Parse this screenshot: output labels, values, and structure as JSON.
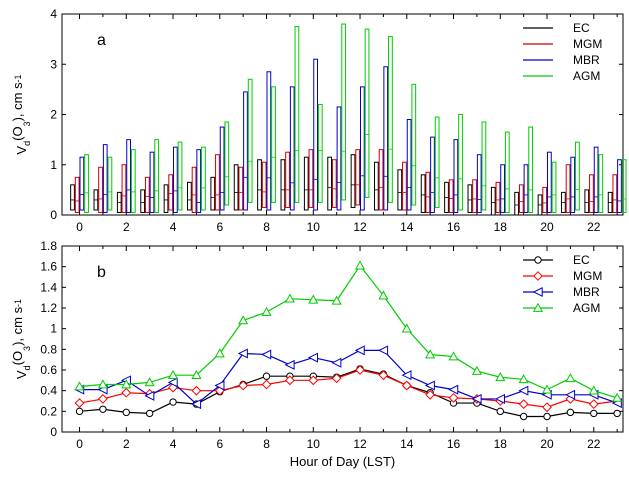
{
  "chart_data": [
    {
      "panel": "a",
      "type": "bar",
      "title": "",
      "ylabel_parts": [
        "V",
        "d",
        "(O",
        "3",
        "), cm s",
        "-1"
      ],
      "xlabel": "",
      "ylim": [
        0,
        4
      ],
      "yticks": [
        "0",
        "1",
        "2",
        "3",
        "4"
      ],
      "xticks": [
        "0",
        "2",
        "4",
        "6",
        "8",
        "10",
        "12",
        "14",
        "16",
        "18",
        "20",
        "22"
      ],
      "legend_position": "top-right",
      "series": [
        {
          "name": "EC",
          "color": "#000000",
          "low": [
            0.1,
            0.1,
            0.05,
            0.05,
            0.05,
            0.1,
            0.1,
            0.1,
            0.1,
            0.1,
            0.1,
            0.1,
            0.15,
            0.1,
            0.1,
            0.05,
            0.05,
            0.05,
            0.0,
            0.0,
            0.0,
            0.05,
            0.05,
            0.05
          ],
          "high": [
            0.6,
            0.5,
            0.45,
            0.5,
            0.6,
            0.65,
            0.75,
            1.0,
            1.1,
            1.1,
            1.15,
            1.15,
            1.2,
            1.05,
            0.9,
            0.8,
            0.65,
            0.6,
            0.55,
            0.45,
            0.4,
            0.45,
            0.5,
            0.45
          ],
          "mid": [
            0.3,
            0.3,
            0.25,
            0.25,
            0.3,
            0.3,
            0.35,
            0.45,
            0.5,
            0.5,
            0.5,
            0.55,
            0.6,
            0.5,
            0.45,
            0.4,
            0.35,
            0.3,
            0.25,
            0.2,
            0.2,
            0.25,
            0.25,
            0.25
          ]
        },
        {
          "name": "MGM",
          "color": "#cc0000",
          "low": [
            0.05,
            0.05,
            0.05,
            0.05,
            0.1,
            0.05,
            0.1,
            0.1,
            0.15,
            0.15,
            0.15,
            0.15,
            0.2,
            0.1,
            0.1,
            0.05,
            0.05,
            0.05,
            0.05,
            0.05,
            0.05,
            0.05,
            0.05,
            0.05
          ],
          "high": [
            0.75,
            0.95,
            1.0,
            0.75,
            0.8,
            0.95,
            1.2,
            0.95,
            1.05,
            1.25,
            1.3,
            1.1,
            1.3,
            1.3,
            1.05,
            0.85,
            0.7,
            0.7,
            0.65,
            0.6,
            0.55,
            1.0,
            0.8,
            0.8
          ],
          "mid": [
            0.28,
            0.32,
            0.38,
            0.37,
            0.43,
            0.4,
            0.4,
            0.45,
            0.46,
            0.5,
            0.5,
            0.52,
            0.6,
            0.55,
            0.45,
            0.36,
            0.33,
            0.32,
            0.3,
            0.27,
            0.24,
            0.32,
            0.27,
            0.3
          ]
        },
        {
          "name": "MBR",
          "color": "#0000cc",
          "low": [
            0.1,
            0.05,
            0.05,
            0.05,
            0.05,
            0.05,
            0.1,
            0.1,
            0.1,
            0.1,
            0.1,
            0.1,
            0.1,
            0.1,
            0.1,
            0.05,
            0.05,
            0.05,
            0.05,
            0.05,
            0.05,
            0.05,
            0.05,
            0.05
          ],
          "high": [
            1.15,
            1.4,
            1.5,
            1.25,
            1.35,
            1.3,
            1.75,
            2.45,
            2.85,
            2.55,
            3.1,
            2.15,
            2.55,
            2.95,
            1.9,
            1.55,
            1.5,
            1.2,
            1.0,
            1.0,
            1.25,
            1.15,
            1.35,
            1.1
          ],
          "mid": [
            0.41,
            0.41,
            0.5,
            0.35,
            0.48,
            0.25,
            0.45,
            0.75,
            0.74,
            0.64,
            0.71,
            0.65,
            0.78,
            0.77,
            0.55,
            0.45,
            0.4,
            0.31,
            0.32,
            0.4,
            0.36,
            0.36,
            0.36,
            0.28
          ]
        },
        {
          "name": "AGM",
          "color": "#00cc00",
          "low": [
            0.05,
            0.1,
            0.05,
            0.05,
            0.1,
            0.1,
            0.2,
            0.25,
            0.25,
            0.25,
            0.25,
            0.3,
            0.35,
            0.25,
            0.2,
            0.15,
            0.1,
            0.1,
            0.05,
            0.05,
            0.05,
            0.1,
            0.05,
            0.05
          ],
          "high": [
            1.2,
            1.15,
            1.3,
            1.5,
            1.45,
            1.35,
            1.85,
            2.7,
            2.55,
            3.75,
            2.2,
            3.8,
            3.7,
            3.55,
            2.6,
            1.95,
            2.0,
            1.85,
            1.65,
            1.75,
            1.05,
            1.45,
            1.2,
            1.1
          ],
          "mid": [
            0.44,
            0.46,
            0.46,
            0.48,
            0.54,
            0.54,
            0.76,
            1.07,
            1.15,
            1.28,
            1.28,
            1.27,
            1.6,
            1.31,
            0.98,
            0.74,
            0.72,
            0.58,
            0.52,
            0.5,
            0.4,
            0.51,
            0.4,
            0.32
          ]
        }
      ]
    },
    {
      "panel": "b",
      "type": "line",
      "title": "",
      "ylabel_parts": [
        "V",
        "d",
        "(O",
        "3",
        "), cm s",
        "-1"
      ],
      "xlabel": "Hour of Day (LST)",
      "ylim": [
        0,
        1.8
      ],
      "yticks": [
        "0",
        "0.2",
        "0.4",
        "0.6",
        "0.8",
        "1",
        "1.2",
        "1.4",
        "1.6",
        "1.8"
      ],
      "xticks": [
        "0",
        "2",
        "4",
        "6",
        "8",
        "10",
        "12",
        "14",
        "16",
        "18",
        "20",
        "22"
      ],
      "legend_position": "top-right",
      "x": [
        0,
        1,
        2,
        3,
        4,
        5,
        6,
        7,
        8,
        9,
        10,
        11,
        12,
        13,
        14,
        15,
        16,
        17,
        18,
        19,
        20,
        21,
        22,
        23
      ],
      "series": [
        {
          "name": "EC",
          "color": "#000000",
          "marker": "circle",
          "values": [
            0.2,
            0.22,
            0.19,
            0.18,
            0.29,
            0.27,
            0.39,
            0.46,
            0.54,
            0.54,
            0.54,
            0.53,
            0.61,
            0.56,
            0.45,
            0.38,
            0.28,
            0.28,
            0.2,
            0.15,
            0.15,
            0.19,
            0.18,
            0.18
          ]
        },
        {
          "name": "MGM",
          "color": "#ff0000",
          "marker": "diamond",
          "values": [
            0.28,
            0.32,
            0.38,
            0.37,
            0.43,
            0.4,
            0.4,
            0.45,
            0.46,
            0.5,
            0.5,
            0.52,
            0.6,
            0.55,
            0.45,
            0.36,
            0.33,
            0.32,
            0.3,
            0.27,
            0.24,
            0.32,
            0.27,
            0.3
          ]
        },
        {
          "name": "MBR",
          "color": "#0000cc",
          "marker": "triangle-left",
          "values": [
            0.41,
            0.41,
            0.5,
            0.35,
            0.48,
            0.27,
            0.45,
            0.76,
            0.75,
            0.65,
            0.72,
            0.67,
            0.79,
            0.79,
            0.55,
            0.45,
            0.41,
            0.32,
            0.32,
            0.4,
            0.36,
            0.36,
            0.36,
            0.28
          ]
        },
        {
          "name": "AGM",
          "color": "#00cc00",
          "marker": "triangle-up",
          "values": [
            0.44,
            0.46,
            0.46,
            0.48,
            0.55,
            0.55,
            0.76,
            1.08,
            1.16,
            1.29,
            1.28,
            1.27,
            1.61,
            1.32,
            1.0,
            0.75,
            0.73,
            0.59,
            0.53,
            0.51,
            0.41,
            0.52,
            0.4,
            0.33
          ]
        }
      ]
    }
  ]
}
